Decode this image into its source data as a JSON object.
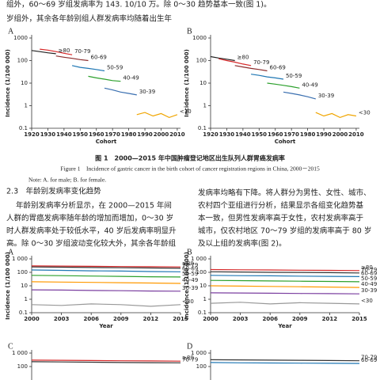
{
  "document": {
    "top_left": [
      "组外，60～69 岁组发病率为 143. 10/10 万。除 0～30",
      "岁组外，其余各年龄别组人群发病率均随着出生年"
    ],
    "top_right": "趋势基本一致(图 1)。",
    "figure_caption_cn": "图 1　2000—2015 年中国肿瘤登记地区出生队列人群胃癌发病率",
    "figure_caption_en": "Figure 1　Incidence of gastric cancer in the birth cohort of cancer registration regions in China, 2000－2015",
    "figure_note": "Note: A. for male; B. for female.",
    "section_heading": "2.3　年龄别发病率变化趋势",
    "paragraph_left": [
      "年龄别发病率分析显示，在 2000—2015 年间",
      "人群的胃癌发病率随年龄的增加而增加，0～30 岁",
      "时人群发病率处于较低水平，40 岁后发病率明显升",
      "高。除 0～30 岁组波动变化较大外，其余各年龄组"
    ],
    "paragraph_right": [
      "发病率均略有下降。将人群分为男性、女性、城市、",
      "农村四个亚组进行分析，结果显示各组变化趋势基",
      "本一致，但男性发病率高于女性，农村发病率高于",
      "城市，仅农村地区 70～79 岁组的发病率高于 80 岁",
      "及以上组的发病率(图 2)。"
    ]
  },
  "chart_data": [
    {
      "type": "line",
      "panel": "A",
      "x_label": "Cohort",
      "y_label": "Incidence (1/100 000)",
      "log_y": true,
      "xlim": [
        1920,
        2012
      ],
      "xticks": [
        1920,
        1930,
        1940,
        1950,
        1960,
        1970,
        1980,
        1990,
        2000,
        2010
      ],
      "ylim": [
        0.1,
        1000
      ],
      "yticks": [
        0.1,
        1,
        10,
        100,
        1000
      ],
      "series": [
        {
          "name": "70-79",
          "color": "#d62728",
          "x": [
            1925,
            1930,
            1935,
            1940,
            1945
          ],
          "values": [
            320,
            290,
            250,
            210,
            180
          ]
        },
        {
          "name": "≥80",
          "color": "#222222",
          "x": [
            1920,
            1925,
            1930,
            1935
          ],
          "values": [
            280,
            250,
            220,
            200
          ]
        },
        {
          "name": "60-69",
          "color": "#8c2d2d",
          "x": [
            1935,
            1940,
            1945,
            1950,
            1955
          ],
          "values": [
            160,
            140,
            125,
            110,
            100
          ]
        },
        {
          "name": "50-59",
          "color": "#1f77b4",
          "x": [
            1945,
            1950,
            1955,
            1960,
            1965
          ],
          "values": [
            60,
            50,
            45,
            40,
            35
          ]
        },
        {
          "name": "40-49",
          "color": "#2ca02c",
          "x": [
            1955,
            1960,
            1965,
            1970,
            1975
          ],
          "values": [
            20,
            17,
            15,
            13,
            12
          ]
        },
        {
          "name": "30-39",
          "color": "#3a6fb0",
          "x": [
            1965,
            1970,
            1975,
            1980,
            1985
          ],
          "values": [
            6,
            5,
            4,
            3.5,
            3
          ]
        },
        {
          "name": "<30",
          "color": "#f0a500",
          "x": [
            1985,
            1990,
            1995,
            2000,
            2005,
            2010
          ],
          "values": [
            0.4,
            0.5,
            0.35,
            0.45,
            0.3,
            0.4
          ]
        }
      ]
    },
    {
      "type": "line",
      "panel": "B",
      "x_label": "Cohort",
      "y_label": "Incidence (1/100 000)",
      "log_y": true,
      "xlim": [
        1920,
        2012
      ],
      "xticks": [
        1920,
        1930,
        1940,
        1950,
        1960,
        1970,
        1980,
        1990,
        2000,
        2010
      ],
      "ylim": [
        0.1,
        1000
      ],
      "yticks": [
        0.1,
        1,
        10,
        100,
        1000
      ],
      "series": [
        {
          "name": "≥80",
          "color": "#222222",
          "x": [
            1920,
            1925,
            1930,
            1935
          ],
          "values": [
            150,
            130,
            115,
            100
          ]
        },
        {
          "name": "70-79",
          "color": "#d62728",
          "x": [
            1925,
            1930,
            1935,
            1940,
            1945
          ],
          "values": [
            120,
            100,
            85,
            70,
            60
          ]
        },
        {
          "name": "60-69",
          "color": "#8c2d2d",
          "x": [
            1935,
            1940,
            1945,
            1950,
            1955
          ],
          "values": [
            60,
            52,
            45,
            40,
            35
          ]
        },
        {
          "name": "50-59",
          "color": "#1f77b4",
          "x": [
            1945,
            1950,
            1955,
            1960,
            1965
          ],
          "values": [
            25,
            22,
            19,
            17,
            15
          ]
        },
        {
          "name": "40-49",
          "color": "#2ca02c",
          "x": [
            1955,
            1960,
            1965,
            1970,
            1975
          ],
          "values": [
            10,
            9,
            8,
            7,
            6
          ]
        },
        {
          "name": "30-39",
          "color": "#3a6fb0",
          "x": [
            1965,
            1970,
            1975,
            1980,
            1985
          ],
          "values": [
            4,
            3.5,
            3,
            2.5,
            2
          ]
        },
        {
          "name": "<30",
          "color": "#f0a500",
          "x": [
            1985,
            1990,
            1995,
            2000,
            2005,
            2010
          ],
          "values": [
            0.5,
            0.35,
            0.45,
            0.3,
            0.4,
            0.35
          ]
        }
      ]
    },
    {
      "type": "line",
      "panel": "A",
      "x_label": "Year",
      "y_label": "Incidence (1/100 000)",
      "log_y": true,
      "xlim": [
        2000,
        2015
      ],
      "xticks": [
        2000,
        2003,
        2006,
        2009,
        2012,
        2015
      ],
      "ylim": [
        0.1,
        1000
      ],
      "yticks": [
        0.1,
        1,
        10,
        100,
        {
          "value": 1000,
          "label": "1 000"
        }
      ],
      "series": [
        {
          "name": "≥80",
          "color": "#d62728",
          "x": [
            2000,
            2003,
            2006,
            2009,
            2012,
            2015
          ],
          "values": [
            300,
            290,
            280,
            270,
            260,
            250
          ]
        },
        {
          "name": "70-79",
          "color": "#333333",
          "x": [
            2000,
            2003,
            2006,
            2009,
            2012,
            2015
          ],
          "values": [
            250,
            240,
            230,
            220,
            210,
            200
          ]
        },
        {
          "name": "60-69",
          "color": "#1f77b4",
          "x": [
            2000,
            2003,
            2006,
            2009,
            2012,
            2015
          ],
          "values": [
            150,
            140,
            130,
            125,
            115,
            110
          ]
        },
        {
          "name": "50-59",
          "color": "#2ca02c",
          "x": [
            2000,
            2003,
            2006,
            2009,
            2012,
            2015
          ],
          "values": [
            60,
            57,
            53,
            50,
            47,
            45
          ]
        },
        {
          "name": "40-49",
          "color": "#ff9900",
          "x": [
            2000,
            2003,
            2006,
            2009,
            2012,
            2015
          ],
          "values": [
            20,
            19,
            18,
            17,
            16,
            15
          ]
        },
        {
          "name": "30-39",
          "color": "#7b3fa0",
          "x": [
            2000,
            2003,
            2006,
            2009,
            2012,
            2015
          ],
          "values": [
            5,
            4.8,
            4.5,
            4.3,
            4.1,
            4
          ]
        },
        {
          "name": "<30",
          "color": "#999999",
          "x": [
            2000,
            2003,
            2006,
            2009,
            2012,
            2015
          ],
          "values": [
            0.4,
            0.35,
            0.45,
            0.4,
            0.3,
            0.4
          ]
        }
      ]
    },
    {
      "type": "line",
      "panel": "B",
      "x_label": "Year",
      "y_label": "Incidence (1/100 000)",
      "log_y": true,
      "xlim": [
        2000,
        2015
      ],
      "xticks": [
        2000,
        2003,
        2006,
        2009,
        2012,
        2015
      ],
      "ylim": [
        0.1,
        1000
      ],
      "yticks": [
        0.1,
        1,
        10,
        100,
        {
          "value": 1000,
          "label": "1 000"
        }
      ],
      "series": [
        {
          "name": "≥80",
          "color": "#d62728",
          "x": [
            2000,
            2003,
            2006,
            2009,
            2012,
            2015
          ],
          "values": [
            160,
            155,
            150,
            145,
            140,
            135
          ]
        },
        {
          "name": "70-79",
          "color": "#333333",
          "x": [
            2000,
            2003,
            2006,
            2009,
            2012,
            2015
          ],
          "values": [
            110,
            105,
            100,
            98,
            95,
            90
          ]
        },
        {
          "name": "60-69",
          "color": "#1f77b4",
          "x": [
            2000,
            2003,
            2006,
            2009,
            2012,
            2015
          ],
          "values": [
            60,
            57,
            55,
            52,
            50,
            48
          ]
        },
        {
          "name": "50-59",
          "color": "#2ca02c",
          "x": [
            2000,
            2003,
            2006,
            2009,
            2012,
            2015
          ],
          "values": [
            25,
            24,
            23,
            22,
            21,
            20
          ]
        },
        {
          "name": "40-49",
          "color": "#ff9900",
          "x": [
            2000,
            2003,
            2006,
            2009,
            2012,
            2015
          ],
          "values": [
            10,
            9.5,
            9,
            8.5,
            8,
            7.5
          ]
        },
        {
          "name": "30-39",
          "color": "#7b3fa0",
          "x": [
            2000,
            2003,
            2006,
            2009,
            2012,
            2015
          ],
          "values": [
            3,
            2.9,
            2.8,
            2.7,
            2.6,
            2.5
          ]
        },
        {
          "name": "<30",
          "color": "#999999",
          "x": [
            2000,
            2003,
            2006,
            2009,
            2012,
            2015
          ],
          "values": [
            0.5,
            0.6,
            0.45,
            0.55,
            0.5,
            0.45
          ]
        }
      ]
    },
    {
      "type": "line",
      "panel": "C",
      "log_y": true,
      "xlim": [
        2000,
        2015
      ],
      "ylim": [
        0.1,
        1000
      ],
      "yticks": [
        {
          "value": 1000,
          "label": "1 000"
        },
        100
      ],
      "series": [
        {
          "name": "≥80",
          "color": "#d62728",
          "x": [
            2000,
            2003,
            2006,
            2009,
            2012,
            2015
          ],
          "values": [
            300,
            290,
            280,
            270,
            260,
            250
          ]
        },
        {
          "name": "70-79",
          "color": "#333333",
          "x": [
            2000,
            2003,
            2006,
            2009,
            2012,
            2015
          ],
          "values": [
            230,
            220,
            210,
            200,
            195,
            190
          ]
        }
      ]
    },
    {
      "type": "line",
      "panel": "D",
      "log_y": true,
      "xlim": [
        2000,
        2015
      ],
      "ylim": [
        0.1,
        1000
      ],
      "yticks": [
        {
          "value": 1000,
          "label": "1 000"
        },
        100
      ],
      "series": [
        {
          "name": "70-79",
          "color": "#333333",
          "x": [
            2000,
            2003,
            2006,
            2009,
            2012,
            2015
          ],
          "values": [
            320,
            310,
            300,
            290,
            280,
            270
          ]
        },
        {
          "name": "60-69",
          "color": "#1f77b4",
          "x": [
            2000,
            2003,
            2006,
            2009,
            2012,
            2015
          ],
          "values": [
            200,
            190,
            185,
            180,
            175,
            170
          ]
        }
      ]
    }
  ]
}
